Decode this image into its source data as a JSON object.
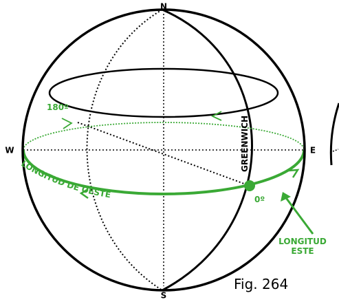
{
  "labels": {
    "north": "N",
    "south": "S",
    "west": "W",
    "east": "E",
    "deg180": "180º",
    "deg0": "0º",
    "greenwich": "GREENWICH",
    "west_longitude": "LONGITUD DE OESTE",
    "east_longitude": [
      "LONGITUD",
      "ESTE"
    ],
    "figure": "Fig. 264"
  }
}
